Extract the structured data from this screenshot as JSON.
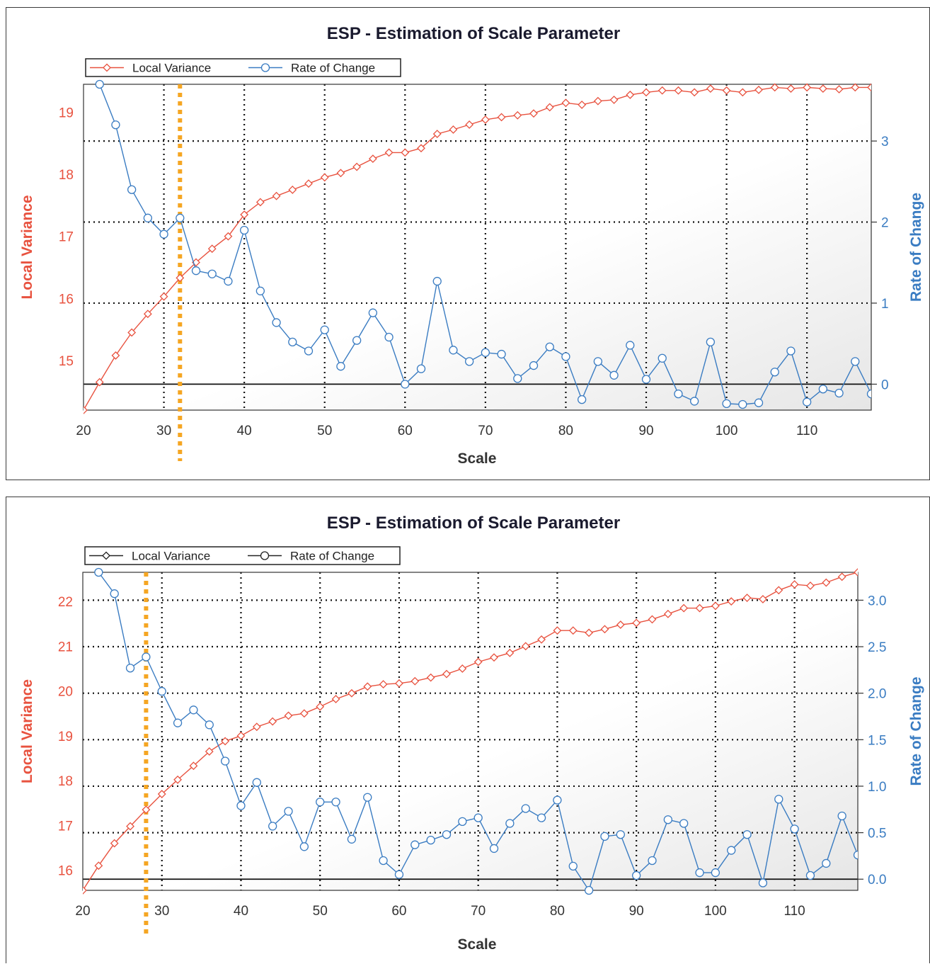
{
  "charts": [
    {
      "title": "ESP - Estimation of Scale Parameter",
      "legend": [
        {
          "label": "Local Variance",
          "color": "#e8523f",
          "marker": "diamond"
        },
        {
          "label": "Rate of Change",
          "color": "#3a7cc2",
          "marker": "circle"
        }
      ],
      "xlabel": "Scale",
      "ylabel_left": "Local Variance",
      "ylabel_right": "Rate of Change"
    },
    {
      "title": "ESP - Estimation of Scale Parameter",
      "legend": [
        {
          "label": "Local Variance",
          "color": "#222222",
          "marker": "diamond"
        },
        {
          "label": "Rate of Change",
          "color": "#222222",
          "marker": "circle"
        }
      ],
      "xlabel": "Scale",
      "ylabel_left": "Local Variance",
      "ylabel_right": "Rate of Change"
    }
  ],
  "colors": {
    "local_variance": "#e8523f",
    "rate_of_change": "#3a7cc2",
    "marker_line": "#f5a623",
    "grid": "#111111",
    "background": "#ffffff"
  },
  "chart_data": [
    {
      "type": "line",
      "title": "ESP - Estimation of Scale Parameter",
      "xlabel": "Scale",
      "ylabel": "Local Variance",
      "y2label": "Rate of Change",
      "xlim": [
        20,
        118
      ],
      "ylim": [
        14.2,
        19.45
      ],
      "y2lim": [
        -0.32,
        3.7
      ],
      "xticks": [
        "20",
        "30",
        "40",
        "50",
        "60",
        "70",
        "80",
        "90",
        "100",
        "110"
      ],
      "yticks": [
        "15",
        "16",
        "17",
        "18",
        "19"
      ],
      "y2ticks": [
        "0",
        "1",
        "2",
        "3"
      ],
      "selected_scale": 32,
      "grid": true,
      "legend": "top-left",
      "series": [
        {
          "name": "Local Variance",
          "axis": "left",
          "x": [
            20,
            22,
            24,
            26,
            28,
            30,
            32,
            34,
            36,
            38,
            40,
            42,
            44,
            46,
            48,
            50,
            52,
            54,
            56,
            58,
            60,
            62,
            64,
            66,
            68,
            70,
            72,
            74,
            76,
            78,
            80,
            82,
            84,
            86,
            88,
            90,
            92,
            94,
            96,
            98,
            100,
            102,
            104,
            106,
            108,
            110,
            112,
            114,
            116,
            118
          ],
          "values": [
            14.2,
            14.65,
            15.08,
            15.45,
            15.75,
            16.03,
            16.33,
            16.58,
            16.8,
            17.0,
            17.35,
            17.55,
            17.65,
            17.75,
            17.85,
            17.95,
            18.02,
            18.12,
            18.25,
            18.35,
            18.35,
            18.42,
            18.65,
            18.72,
            18.8,
            18.88,
            18.92,
            18.95,
            18.98,
            19.08,
            19.15,
            19.12,
            19.18,
            19.2,
            19.28,
            19.32,
            19.35,
            19.35,
            19.32,
            19.38,
            19.35,
            19.32,
            19.36,
            19.4,
            19.38,
            19.4,
            19.38,
            19.37,
            19.4,
            19.4
          ]
        },
        {
          "name": "Rate of Change",
          "axis": "right",
          "x": [
            22,
            24,
            26,
            28,
            30,
            32,
            34,
            36,
            38,
            40,
            42,
            44,
            46,
            48,
            50,
            52,
            54,
            56,
            58,
            60,
            62,
            64,
            66,
            68,
            70,
            72,
            74,
            76,
            78,
            80,
            82,
            84,
            86,
            88,
            90,
            92,
            94,
            96,
            98,
            100,
            102,
            104,
            106,
            108,
            110,
            112,
            114,
            116,
            118
          ],
          "values": [
            3.7,
            3.2,
            2.4,
            2.05,
            1.85,
            2.05,
            1.4,
            1.36,
            1.27,
            1.9,
            1.15,
            0.76,
            0.52,
            0.41,
            0.67,
            0.22,
            0.54,
            0.88,
            0.58,
            0.0,
            0.19,
            1.27,
            0.42,
            0.28,
            0.39,
            0.37,
            0.07,
            0.23,
            0.46,
            0.34,
            -0.19,
            0.28,
            0.11,
            0.48,
            0.06,
            0.32,
            -0.12,
            -0.21,
            0.52,
            -0.24,
            -0.25,
            -0.23,
            0.15,
            0.41,
            -0.22,
            -0.06,
            -0.11,
            0.28,
            -0.12
          ]
        }
      ]
    },
    {
      "type": "line",
      "title": "ESP - Estimation of Scale Parameter",
      "xlabel": "Scale",
      "ylabel": "Local Variance",
      "y2label": "Rate of Change",
      "xlim": [
        20,
        118
      ],
      "ylim": [
        15.55,
        22.65
      ],
      "y2lim": [
        -0.12,
        3.3
      ],
      "xticks": [
        "20",
        "30",
        "40",
        "50",
        "60",
        "70",
        "80",
        "90",
        "100",
        "110"
      ],
      "yticks": [
        "16",
        "17",
        "18",
        "19",
        "20",
        "21",
        "22"
      ],
      "y2ticks": [
        "0.0",
        "0.5",
        "1.0",
        "1.5",
        "2.0",
        "2.5",
        "3.0"
      ],
      "selected_scale": 28,
      "grid": true,
      "legend": "top-left",
      "series": [
        {
          "name": "Local Variance",
          "axis": "left",
          "x": [
            20,
            22,
            24,
            26,
            28,
            30,
            32,
            34,
            36,
            38,
            40,
            42,
            44,
            46,
            48,
            50,
            52,
            54,
            56,
            58,
            60,
            62,
            64,
            66,
            68,
            70,
            72,
            74,
            76,
            78,
            80,
            82,
            84,
            86,
            88,
            90,
            92,
            94,
            96,
            98,
            100,
            102,
            104,
            106,
            108,
            110,
            112,
            114,
            116,
            118
          ],
          "values": [
            15.55,
            16.1,
            16.6,
            16.98,
            17.35,
            17.7,
            18.02,
            18.33,
            18.65,
            18.88,
            19.0,
            19.2,
            19.32,
            19.45,
            19.5,
            19.65,
            19.82,
            19.95,
            20.1,
            20.15,
            20.17,
            20.22,
            20.3,
            20.38,
            20.5,
            20.65,
            20.75,
            20.85,
            21.0,
            21.15,
            21.35,
            21.35,
            21.3,
            21.38,
            21.48,
            21.52,
            21.6,
            21.72,
            21.85,
            21.85,
            21.9,
            22.0,
            22.08,
            22.05,
            22.25,
            22.38,
            22.35,
            22.42,
            22.55,
            22.65
          ]
        },
        {
          "name": "Rate of Change",
          "axis": "right",
          "x": [
            22,
            24,
            26,
            28,
            30,
            32,
            34,
            36,
            38,
            40,
            42,
            44,
            46,
            48,
            50,
            52,
            54,
            56,
            58,
            60,
            62,
            64,
            66,
            68,
            70,
            72,
            74,
            76,
            78,
            80,
            82,
            84,
            86,
            88,
            90,
            92,
            94,
            96,
            98,
            100,
            102,
            104,
            106,
            108,
            110,
            112,
            114,
            116,
            118
          ],
          "values": [
            3.3,
            3.07,
            2.27,
            2.39,
            2.02,
            1.68,
            1.82,
            1.66,
            1.27,
            0.79,
            1.04,
            0.57,
            0.73,
            0.35,
            0.83,
            0.83,
            0.43,
            0.88,
            0.2,
            0.05,
            0.37,
            0.42,
            0.48,
            0.62,
            0.66,
            0.33,
            0.6,
            0.76,
            0.66,
            0.85,
            0.14,
            -0.12,
            0.46,
            0.48,
            0.04,
            0.2,
            0.64,
            0.6,
            0.07,
            0.07,
            0.31,
            0.48,
            -0.04,
            0.86,
            0.54,
            0.04,
            0.17,
            0.68,
            0.26
          ]
        }
      ]
    }
  ]
}
